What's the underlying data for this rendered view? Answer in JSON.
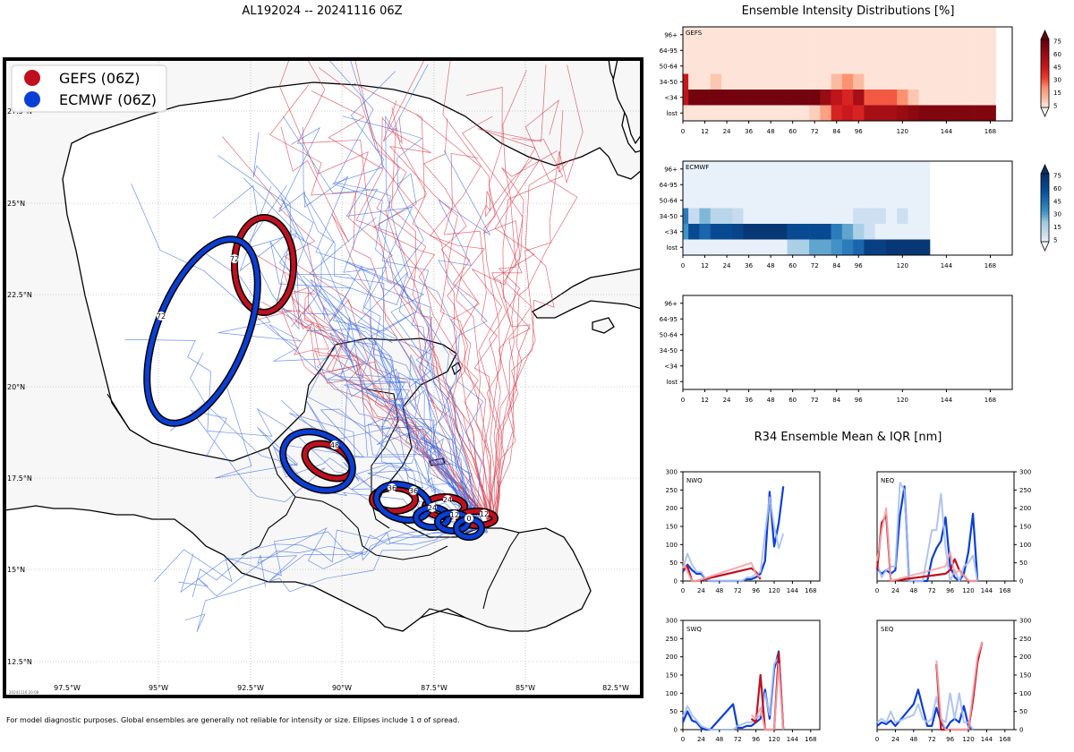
{
  "main_title": "AL192024 -- 20241116 06Z",
  "footnote": "For model diagnostic purposes. Global ensembles are generally not reliable for intensity or size. Ellipses include 1 σ of spread.",
  "map": {
    "stamp": "20241116 20:08",
    "lon_labels": [
      "97.5°W",
      "95°W",
      "92.5°W",
      "90°W",
      "87.5°W",
      "85°W",
      "82.5°W"
    ],
    "lat_labels": [
      "27.5°N",
      "25°N",
      "22.5°N",
      "20°N",
      "17.5°N",
      "15°N",
      "12.5°N"
    ],
    "legend": [
      {
        "label": "GEFS (06Z)",
        "color": "#c0101f"
      },
      {
        "label": "ECMWF (06Z)",
        "color": "#0a3fd6"
      }
    ],
    "ellipse_labels": {
      "gefs": [
        "12",
        "24",
        "36",
        "48",
        "72"
      ],
      "ecmwf": [
        "0",
        "12",
        "24",
        "36",
        "48",
        "72"
      ]
    }
  },
  "intensity_panel": {
    "title": "Ensemble Intensity Distributions [%]",
    "y_categories": [
      "96+",
      "64-95",
      "50-64",
      "34-50",
      "<34",
      "lost"
    ],
    "x_ticks": [
      "0",
      "12",
      "24",
      "36",
      "48",
      "60",
      "72",
      "84",
      "96",
      "120",
      "144",
      "168"
    ],
    "colorbar_ticks": [
      "75",
      "60",
      "45",
      "30",
      "15",
      "5"
    ],
    "panels": [
      {
        "label": "GEFS",
        "color": "red"
      },
      {
        "label": "ECMWF",
        "color": "blue"
      },
      {
        "label": "",
        "color": "none"
      }
    ]
  },
  "r34_panel": {
    "title": "R34 Ensemble Mean & IQR [nm]",
    "y_ticks": [
      "0",
      "50",
      "100",
      "150",
      "200",
      "250",
      "300"
    ],
    "x_ticks": [
      "0",
      "24",
      "48",
      "72",
      "96",
      "120",
      "144",
      "168"
    ],
    "quadrants": [
      "NWQ",
      "NEQ",
      "SWQ",
      "SEQ"
    ]
  },
  "chart_data": [
    {
      "type": "heatmap",
      "title": "GEFS",
      "x_hours": [
        0,
        6,
        12,
        18,
        24,
        30,
        36,
        42,
        48,
        54,
        60,
        66,
        72,
        78,
        84,
        90,
        96,
        102,
        108,
        114,
        120,
        126,
        132,
        138,
        144,
        150,
        156,
        162,
        168
      ],
      "rows": {
        "96+": [
          4,
          4,
          4,
          4,
          4,
          4,
          4,
          4,
          4,
          4,
          4,
          4,
          4,
          4,
          4,
          4,
          4,
          4,
          4,
          4,
          4,
          4,
          4,
          4,
          4,
          4,
          4,
          4,
          4
        ],
        "64-95": [
          4,
          4,
          4,
          4,
          4,
          4,
          4,
          4,
          4,
          4,
          4,
          4,
          4,
          4,
          4,
          4,
          4,
          4,
          4,
          4,
          4,
          4,
          4,
          4,
          4,
          4,
          4,
          4,
          4
        ],
        "50-64": [
          4,
          4,
          4,
          4,
          4,
          4,
          4,
          4,
          4,
          4,
          4,
          4,
          4,
          4,
          4,
          4,
          4,
          4,
          4,
          4,
          4,
          4,
          4,
          4,
          4,
          4,
          4,
          4,
          4
        ],
        "34-50": [
          60,
          4,
          4,
          12,
          4,
          4,
          4,
          4,
          4,
          4,
          4,
          4,
          4,
          4,
          15,
          30,
          15,
          4,
          4,
          4,
          4,
          4,
          4,
          4,
          4,
          4,
          4,
          4,
          4
        ],
        "<34": [
          65,
          95,
          95,
          95,
          95,
          95,
          95,
          95,
          95,
          95,
          95,
          95,
          95,
          80,
          65,
          55,
          75,
          40,
          40,
          40,
          30,
          12,
          4,
          4,
          4,
          4,
          4,
          4,
          4
        ],
        "lost": [
          4,
          4,
          4,
          4,
          4,
          4,
          4,
          4,
          4,
          4,
          4,
          4,
          10,
          25,
          55,
          60,
          55,
          75,
          75,
          75,
          80,
          85,
          90,
          90,
          90,
          90,
          90,
          90,
          90
        ]
      }
    },
    {
      "type": "heatmap",
      "title": "ECMWF",
      "x_hours": [
        0,
        6,
        12,
        18,
        24,
        30,
        36,
        42,
        48,
        54,
        60,
        66,
        72,
        78,
        84,
        90,
        96,
        102,
        108,
        114,
        120,
        126,
        132
      ],
      "rows": {
        "96+": [
          3,
          3,
          3,
          3,
          3,
          3,
          3,
          3,
          3,
          3,
          3,
          3,
          3,
          3,
          3,
          3,
          3,
          3,
          3,
          3,
          3,
          3,
          3
        ],
        "64-95": [
          3,
          3,
          3,
          3,
          3,
          3,
          3,
          3,
          3,
          3,
          3,
          3,
          3,
          3,
          3,
          3,
          3,
          3,
          3,
          3,
          3,
          3,
          3
        ],
        "50-64": [
          3,
          3,
          3,
          3,
          3,
          3,
          3,
          3,
          3,
          3,
          3,
          3,
          3,
          3,
          3,
          3,
          3,
          3,
          3,
          3,
          3,
          3,
          3
        ],
        "34-50": [
          55,
          15,
          35,
          20,
          20,
          15,
          3,
          3,
          3,
          3,
          3,
          3,
          3,
          3,
          3,
          3,
          12,
          12,
          12,
          3,
          12,
          3,
          3
        ],
        "<34": [
          45,
          80,
          65,
          80,
          80,
          85,
          95,
          95,
          95,
          95,
          80,
          80,
          80,
          80,
          55,
          40,
          25,
          12,
          3,
          3,
          3,
          3,
          3
        ],
        "lost": [
          3,
          3,
          3,
          3,
          3,
          3,
          3,
          3,
          3,
          3,
          25,
          25,
          40,
          40,
          45,
          55,
          65,
          88,
          88,
          95,
          95,
          95,
          95
        ]
      }
    },
    {
      "type": "heatmap",
      "title": "",
      "x_hours": [],
      "rows": {}
    },
    {
      "type": "line",
      "title": "NWQ",
      "xlim": [
        0,
        180
      ],
      "ylim": [
        0,
        300
      ],
      "series": [
        {
          "name": "ECMWF mean",
          "color": "#0a3fd6",
          "x": [
            0,
            6,
            12,
            18,
            24,
            30,
            36,
            42,
            72,
            78,
            84,
            90,
            96,
            102,
            108,
            114,
            120,
            126,
            132
          ],
          "y": [
            25,
            45,
            30,
            20,
            20,
            5,
            0,
            0,
            0,
            0,
            5,
            5,
            10,
            20,
            55,
            245,
            95,
            160,
            260
          ]
        },
        {
          "name": "ECMWF IQR",
          "color": "#a9bfec",
          "x": [
            0,
            6,
            12,
            18,
            24,
            30,
            36,
            42,
            72,
            78,
            84,
            90,
            96,
            102,
            108,
            114,
            120,
            126,
            132
          ],
          "y": [
            35,
            75,
            45,
            25,
            25,
            5,
            0,
            0,
            0,
            0,
            10,
            10,
            20,
            25,
            130,
            230,
            150,
            90,
            130
          ]
        },
        {
          "name": "GEFS mean",
          "color": "#c0101f",
          "x": [
            0,
            6,
            12,
            18,
            90,
            96,
            102
          ],
          "y": [
            30,
            40,
            0,
            0,
            35,
            25,
            5
          ]
        },
        {
          "name": "GEFS IQR",
          "color": "#f1a3a9",
          "x": [
            0,
            6,
            12,
            18,
            90,
            96,
            102
          ],
          "y": [
            55,
            25,
            0,
            0,
            50,
            20,
            10
          ]
        }
      ]
    },
    {
      "type": "line",
      "title": "NEQ",
      "xlim": [
        0,
        180
      ],
      "ylim": [
        0,
        300
      ],
      "series": [
        {
          "name": "ECMWF mean",
          "color": "#0a3fd6",
          "x": [
            0,
            6,
            12,
            18,
            24,
            30,
            36,
            42,
            48,
            54,
            60,
            66,
            72,
            78,
            84,
            90,
            96,
            102,
            108,
            114,
            120,
            126,
            132
          ],
          "y": [
            35,
            20,
            30,
            20,
            30,
            180,
            260,
            0,
            0,
            0,
            0,
            0,
            60,
            90,
            110,
            175,
            40,
            10,
            0,
            20,
            80,
            185,
            0
          ]
        },
        {
          "name": "ECMWF IQR",
          "color": "#a9bfec",
          "x": [
            0,
            6,
            12,
            18,
            24,
            30,
            36,
            42,
            48,
            54,
            60,
            66,
            72,
            78,
            84,
            90,
            96,
            102,
            108,
            114,
            120,
            126,
            132
          ],
          "y": [
            50,
            10,
            30,
            40,
            40,
            270,
            250,
            0,
            0,
            0,
            0,
            70,
            140,
            140,
            240,
            90,
            0,
            30,
            0,
            40,
            50,
            70,
            0
          ]
        },
        {
          "name": "GEFS mean",
          "color": "#c0101f",
          "x": [
            0,
            6,
            12,
            18,
            90,
            96,
            102,
            108,
            120,
            126,
            132
          ],
          "y": [
            30,
            160,
            180,
            0,
            20,
            30,
            60,
            30,
            0,
            0,
            0
          ]
        },
        {
          "name": "GEFS IQR",
          "color": "#f1a3a9",
          "x": [
            0,
            6,
            12,
            18,
            90,
            96,
            102,
            108,
            120,
            126,
            132
          ],
          "y": [
            55,
            140,
            200,
            0,
            40,
            80,
            20,
            30,
            0,
            0,
            0
          ]
        }
      ]
    },
    {
      "type": "line",
      "title": "SWQ",
      "xlim": [
        0,
        180
      ],
      "ylim": [
        0,
        300
      ],
      "series": [
        {
          "name": "ECMWF mean",
          "color": "#0a3fd6",
          "x": [
            0,
            6,
            12,
            18,
            24,
            30,
            36,
            66,
            72,
            78,
            84,
            90,
            96,
            102,
            108,
            114,
            120,
            126,
            132
          ],
          "y": [
            20,
            50,
            25,
            20,
            5,
            0,
            0,
            70,
            5,
            5,
            10,
            10,
            20,
            30,
            110,
            30,
            165,
            215,
            0
          ]
        },
        {
          "name": "ECMWF IQR",
          "color": "#a9bfec",
          "x": [
            0,
            6,
            12,
            18,
            24,
            30,
            36,
            66,
            72,
            78,
            84,
            90,
            96,
            102,
            108,
            114,
            120,
            126,
            132
          ],
          "y": [
            35,
            65,
            40,
            25,
            10,
            5,
            0,
            0,
            10,
            15,
            20,
            20,
            30,
            40,
            100,
            40,
            180,
            200,
            0
          ]
        },
        {
          "name": "GEFS mean",
          "color": "#c0101f",
          "x": [
            90,
            96,
            102,
            108,
            114,
            120,
            126,
            132
          ],
          "y": [
            30,
            20,
            150,
            0,
            0,
            0,
            210,
            0
          ]
        },
        {
          "name": "GEFS IQR",
          "color": "#f1a3a9",
          "x": [
            90,
            96,
            102,
            108,
            114,
            120,
            126,
            132
          ],
          "y": [
            40,
            30,
            60,
            0,
            0,
            0,
            180,
            0
          ]
        }
      ]
    },
    {
      "type": "line",
      "title": "SEQ",
      "xlim": [
        0,
        180
      ],
      "ylim": [
        0,
        300
      ],
      "series": [
        {
          "name": "ECMWF mean",
          "color": "#0a3fd6",
          "x": [
            0,
            6,
            12,
            18,
            24,
            48,
            54,
            60,
            66,
            72,
            78,
            84,
            90,
            96,
            102,
            108,
            114,
            120,
            126
          ],
          "y": [
            10,
            20,
            15,
            25,
            10,
            70,
            110,
            60,
            10,
            10,
            60,
            20,
            0,
            20,
            30,
            20,
            65,
            10,
            0
          ]
        },
        {
          "name": "ECMWF IQR",
          "color": "#a9bfec",
          "x": [
            0,
            6,
            12,
            18,
            24,
            48,
            54,
            60,
            66,
            72,
            78,
            84,
            90,
            96,
            102,
            108,
            114,
            120,
            126
          ],
          "y": [
            20,
            30,
            20,
            50,
            20,
            40,
            70,
            30,
            20,
            30,
            90,
            30,
            20,
            100,
            30,
            100,
            20,
            20,
            0
          ]
        },
        {
          "name": "GEFS mean",
          "color": "#c0101f",
          "x": [
            78,
            84,
            90,
            120,
            126,
            132,
            138
          ],
          "y": [
            180,
            0,
            0,
            0,
            80,
            185,
            240
          ]
        },
        {
          "name": "GEFS IQR",
          "color": "#f1a3a9",
          "x": [
            78,
            84,
            90,
            120,
            126,
            132,
            138
          ],
          "y": [
            190,
            30,
            0,
            0,
            100,
            200,
            240
          ]
        }
      ]
    }
  ]
}
